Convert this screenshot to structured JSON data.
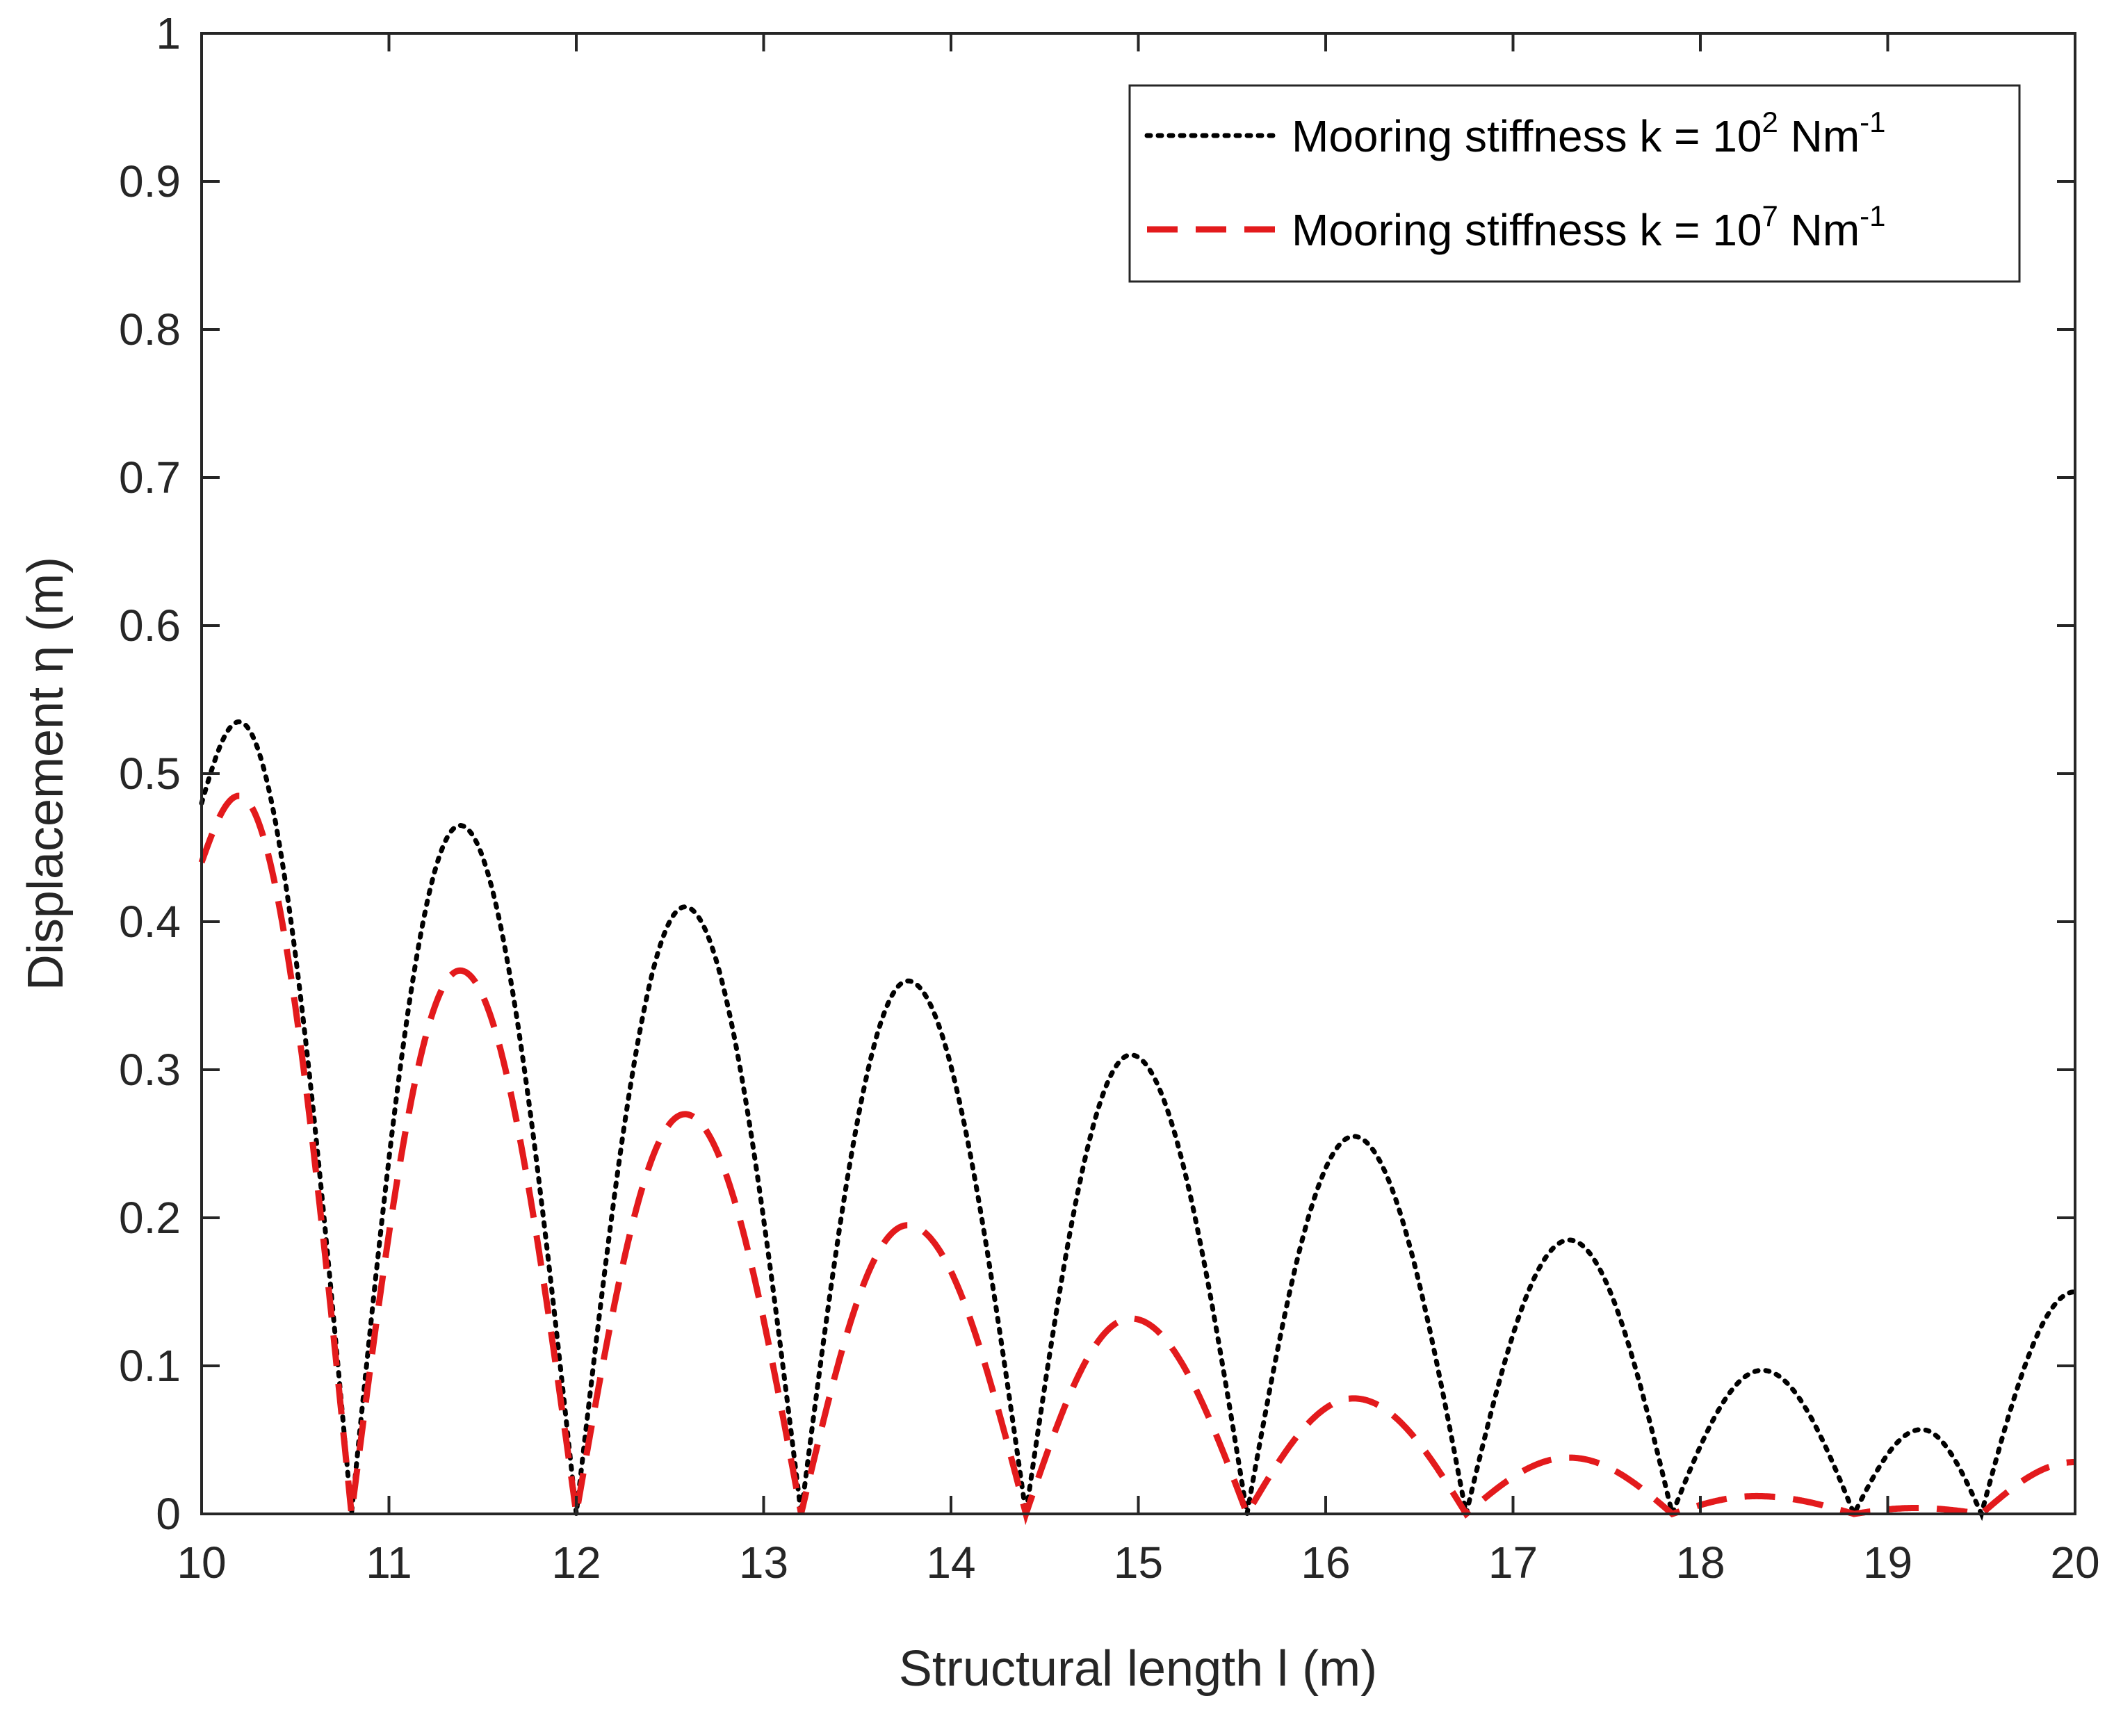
{
  "chart_data": {
    "type": "line",
    "title": "",
    "xlabel": "Structural length l (m)",
    "ylabel": "Displacement  η (m)",
    "xlim": [
      10,
      20
    ],
    "ylim": [
      0,
      1
    ],
    "grid": false,
    "legend_position": "top-right",
    "xticks": [
      "10",
      "11",
      "12",
      "13",
      "14",
      "15",
      "16",
      "17",
      "18",
      "19",
      "20"
    ],
    "yticks": [
      "0",
      "0.1",
      "0.2",
      "0.3",
      "0.4",
      "0.5",
      "0.6",
      "0.7",
      "0.8",
      "0.9",
      "1"
    ],
    "series": [
      {
        "name": "Mooring stiffness k = 10^2 Nm^-1",
        "legend_prefix": "Mooring stiffness k = 10",
        "legend_exp": "2",
        "legend_unit": " Nm",
        "legend_unit_exp": "-1",
        "color": "#000000",
        "style": "dotted",
        "peaks": [
          [
            10.2,
            0.535
          ],
          [
            11.38,
            0.465
          ],
          [
            12.58,
            0.41
          ],
          [
            13.77,
            0.36
          ],
          [
            14.96,
            0.31
          ],
          [
            16.15,
            0.255
          ],
          [
            17.3,
            0.185
          ],
          [
            18.33,
            0.097
          ],
          [
            19.18,
            0.057
          ]
        ],
        "zeros": [
          10.8,
          12.0,
          13.2,
          14.4,
          15.58,
          16.75,
          17.85,
          18.82,
          19.5
        ],
        "endpoints": [
          [
            10.0,
            0.48
          ],
          [
            20.0,
            0.15
          ]
        ]
      },
      {
        "name": "Mooring stiffness k = 10^7 Nm^-1",
        "legend_prefix": "Mooring stiffness k = 10",
        "legend_exp": "7",
        "legend_unit": " Nm",
        "legend_unit_exp": "-1",
        "color": "#e31a1c",
        "style": "dashed",
        "peaks": [
          [
            10.2,
            0.485
          ],
          [
            11.38,
            0.367
          ],
          [
            12.58,
            0.27
          ],
          [
            13.77,
            0.195
          ],
          [
            14.96,
            0.132
          ],
          [
            16.15,
            0.078
          ],
          [
            17.3,
            0.038
          ],
          [
            18.3,
            0.012
          ],
          [
            19.15,
            0.004
          ]
        ],
        "zeros": [
          10.8,
          12.0,
          13.2,
          14.4,
          15.58,
          16.75,
          17.85,
          18.82,
          19.5
        ],
        "endpoints": [
          [
            10.0,
            0.44
          ],
          [
            20.0,
            0.035
          ]
        ]
      }
    ]
  }
}
